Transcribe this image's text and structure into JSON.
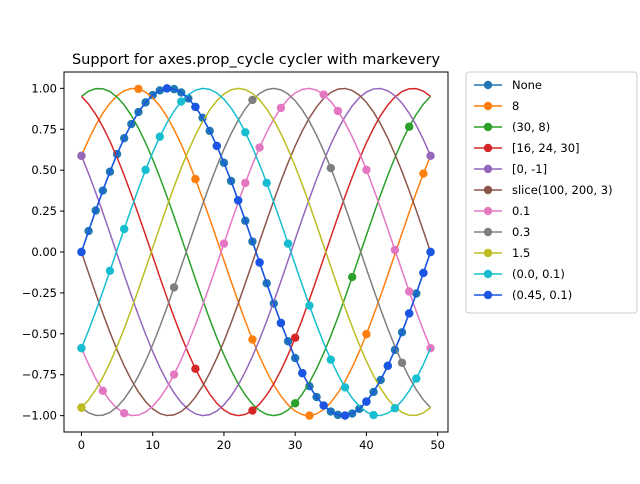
{
  "chart_data": {
    "type": "line",
    "title": "Support for axes.prop_cycle cycler with markevery",
    "xlabel": "",
    "ylabel": "",
    "xlim": [
      -2.45,
      51.45
    ],
    "ylim": [
      -1.1,
      1.1
    ],
    "x_ticks": [
      0,
      10,
      20,
      30,
      40,
      50
    ],
    "x_tick_labels": [
      "0",
      "10",
      "20",
      "30",
      "40",
      "50"
    ],
    "y_ticks": [
      -1.0,
      -0.75,
      -0.5,
      -0.25,
      0.0,
      0.25,
      0.5,
      0.75,
      1.0
    ],
    "y_tick_labels": [
      "−1.00",
      "−0.75",
      "−0.50",
      "−0.25",
      "0.00",
      "0.25",
      "0.50",
      "0.75",
      "1.00"
    ],
    "grid": false,
    "legend_position": "outside-right-top",
    "x": [
      0,
      1,
      2,
      3,
      4,
      5,
      6,
      7,
      8,
      9,
      10,
      11,
      12,
      13,
      14,
      15,
      16,
      17,
      18,
      19,
      20,
      21,
      22,
      23,
      24,
      25,
      26,
      27,
      28,
      29,
      30,
      31,
      32,
      33,
      34,
      35,
      36,
      37,
      38,
      39,
      40,
      41,
      42,
      43,
      44,
      45,
      46,
      47,
      48,
      49
    ],
    "series": [
      {
        "name": "None",
        "color": "#1f77b4",
        "phase_offset": 0.0,
        "markers_at": [
          0,
          1,
          2,
          3,
          4,
          5,
          6,
          7,
          8,
          9,
          10,
          11,
          12,
          13,
          14,
          15,
          16,
          17,
          18,
          19,
          20,
          21,
          22,
          23,
          24,
          25,
          26,
          27,
          28,
          29,
          30,
          31,
          32,
          33,
          34,
          35,
          36,
          37,
          38,
          39,
          40,
          41,
          42,
          43,
          44,
          45,
          46,
          47,
          48,
          49
        ]
      },
      {
        "name": "8",
        "color": "#ff7f0e",
        "phase_offset": 0.6283,
        "markers_at": [
          0,
          8,
          16,
          24,
          32,
          40,
          48
        ]
      },
      {
        "name": "(30, 8)",
        "color": "#2ca02c",
        "phase_offset": 1.2566,
        "markers_at": [
          30,
          38,
          46
        ]
      },
      {
        "name": "[16, 24, 30]",
        "color": "#d62728",
        "phase_offset": 1.885,
        "markers_at": [
          16,
          24,
          30
        ]
      },
      {
        "name": "[0, -1]",
        "color": "#9467bd",
        "phase_offset": 2.5133,
        "markers_at": [
          0,
          49
        ]
      },
      {
        "name": "slice(100, 200, 3)",
        "color": "#8c564b",
        "phase_offset": 3.1416,
        "markers_at": []
      },
      {
        "name": "0.1",
        "color": "#e377c2",
        "phase_offset": 3.7699,
        "markers_at": [
          0,
          3,
          6,
          13,
          20,
          23,
          25,
          28,
          34,
          36,
          40,
          44,
          46,
          49
        ]
      },
      {
        "name": "0.3",
        "color": "#7f7f7f",
        "phase_offset": 4.3982,
        "markers_at": [
          0,
          13,
          24,
          35,
          45
        ]
      },
      {
        "name": "1.5",
        "color": "#bcbd22",
        "phase_offset": 5.0265,
        "markers_at": [
          0
        ]
      },
      {
        "name": "(0.0, 0.1)",
        "color": "#17becf",
        "phase_offset": 5.6549,
        "markers_at": [
          0,
          4,
          6,
          9,
          11,
          14,
          23,
          26,
          29,
          32,
          35,
          37,
          41,
          44,
          47
        ]
      },
      {
        "name": "(0.45, 0.1)",
        "color": "#1a55e3",
        "phase_offset": 6.2832,
        "markers_at": [
          0,
          12,
          16,
          19,
          22,
          25,
          28,
          31,
          34,
          37,
          40,
          43,
          46,
          48,
          49
        ]
      }
    ],
    "note_y_formula": ""
  }
}
